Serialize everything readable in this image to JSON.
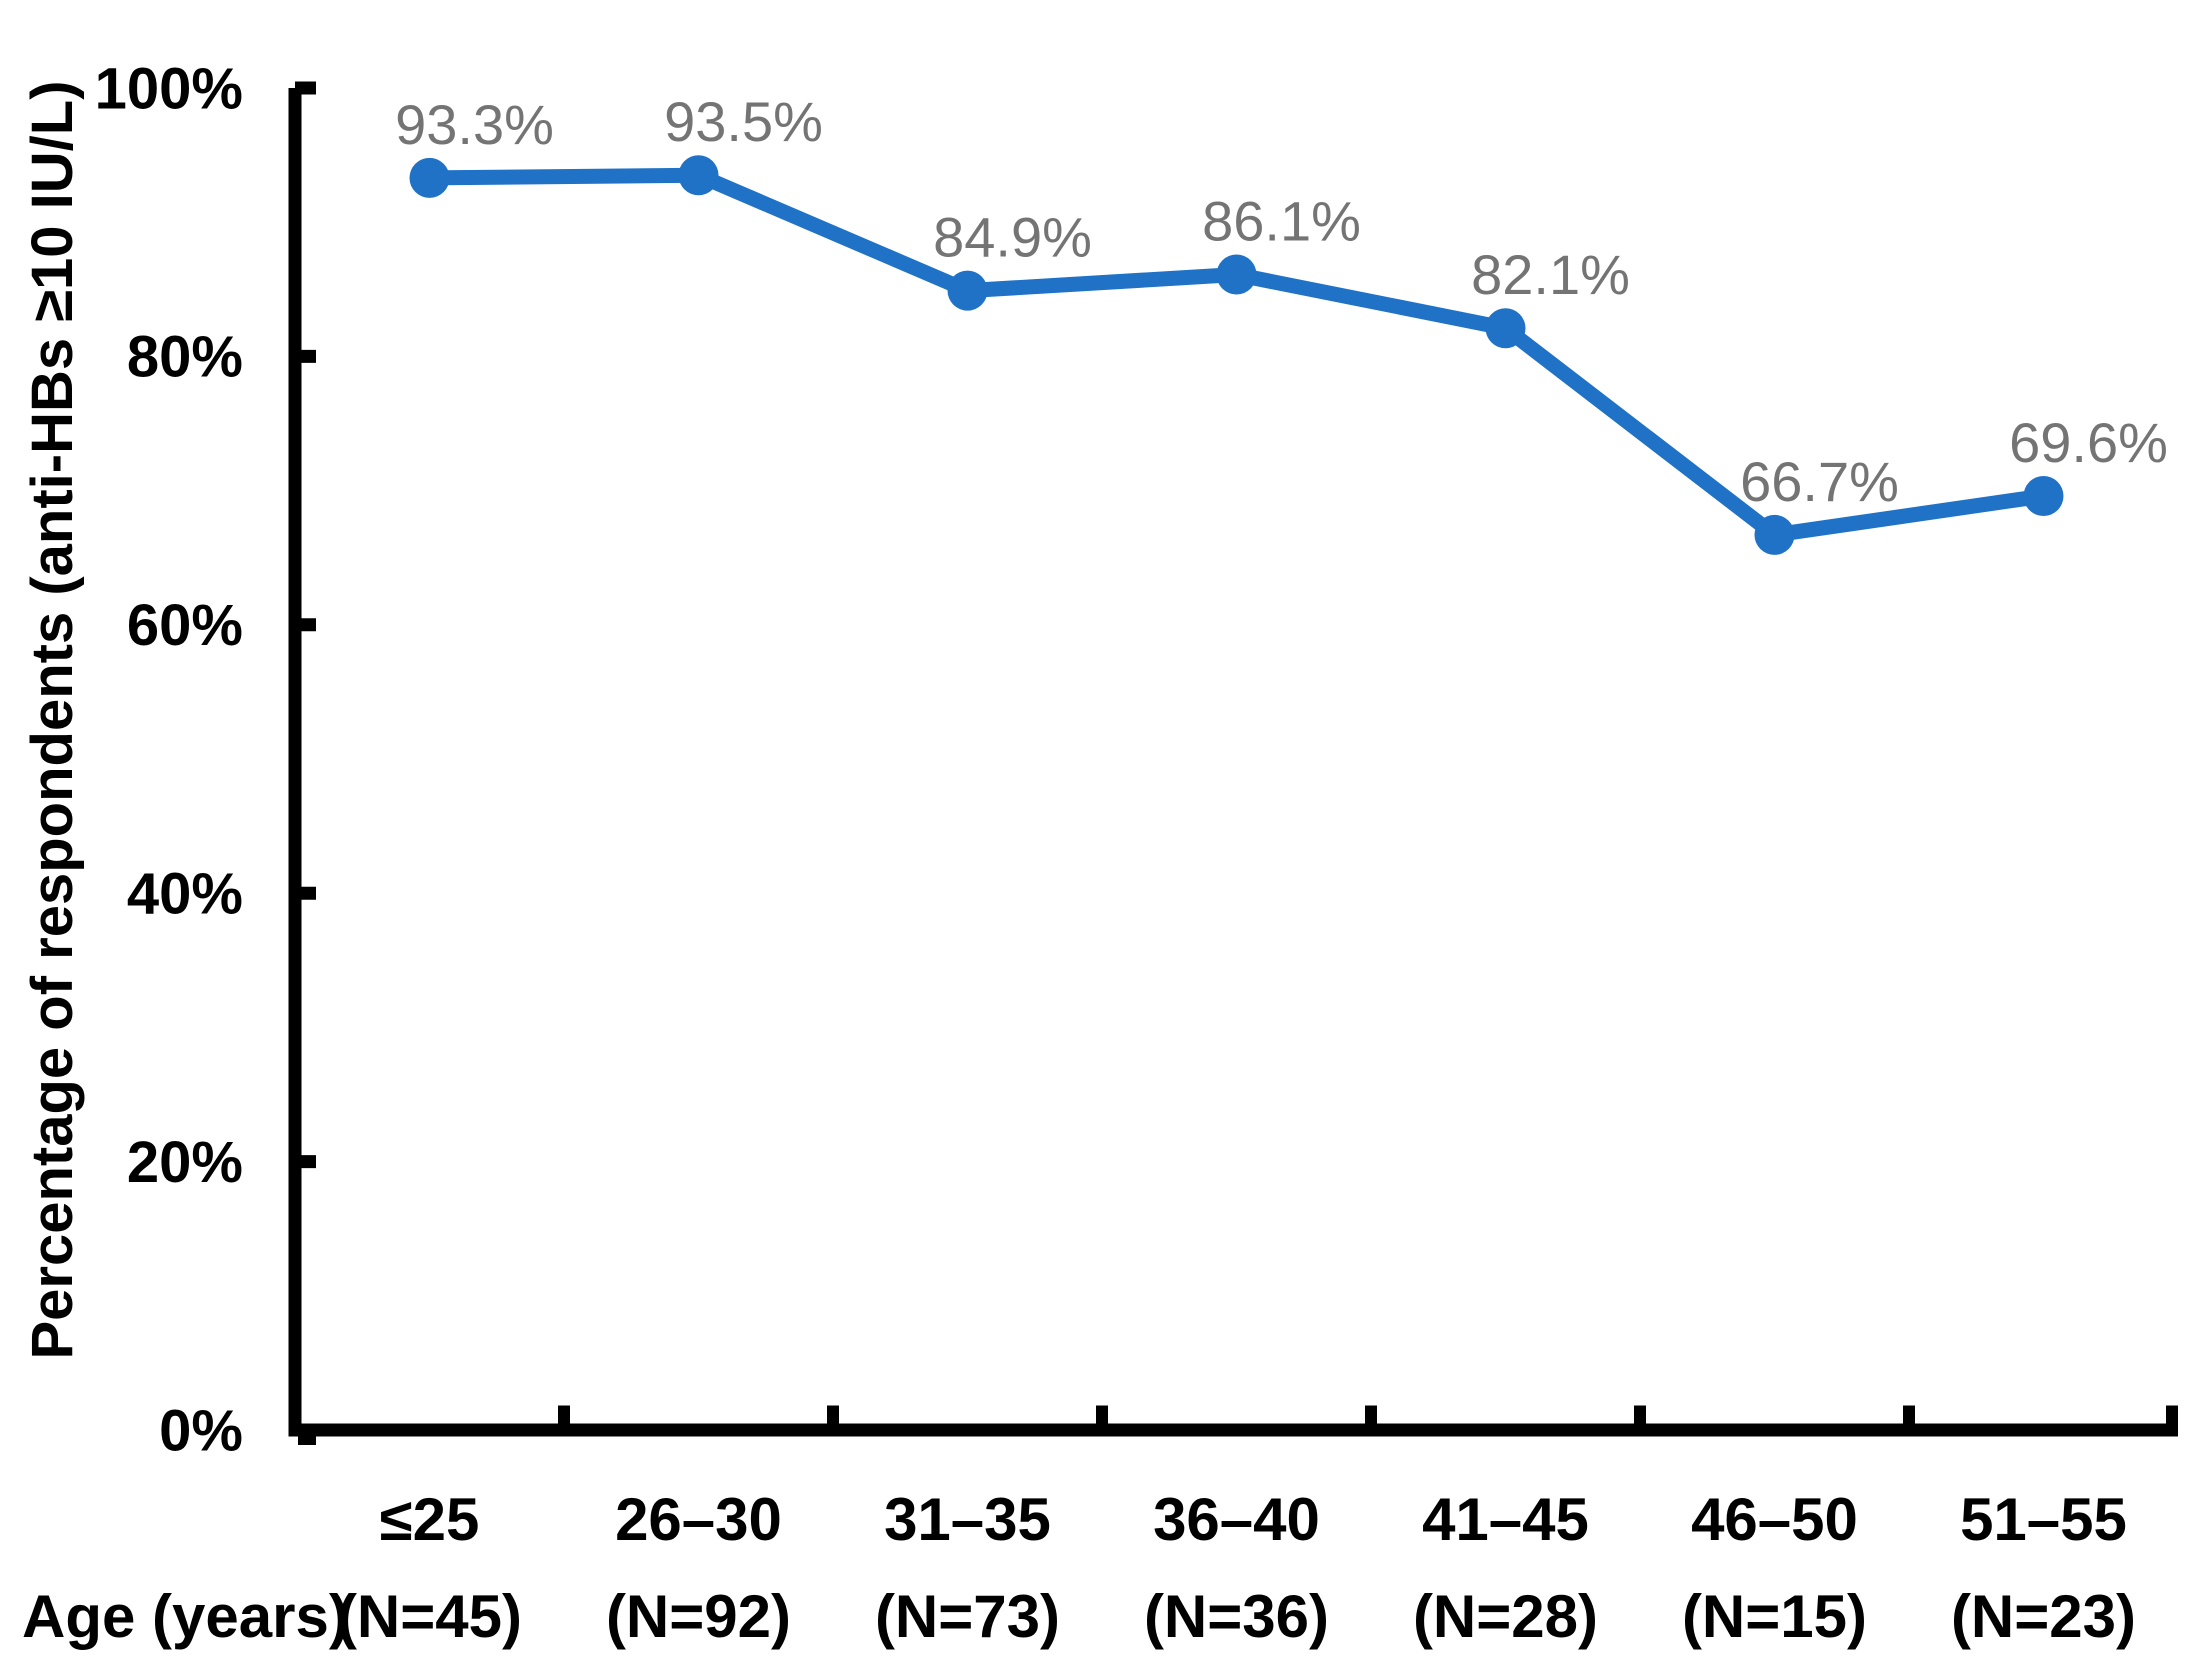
{
  "figure": {
    "background": "#ffffff"
  },
  "chart_data": {
    "type": "line",
    "title": "",
    "ylabel": "Percentage of respondents (anti-HBs ≥10 IU/L)",
    "xlabel": "Age (years)",
    "categories": [
      "≤25",
      "26–30",
      "31–35",
      "36–40",
      "41–45",
      "46–50",
      "51–55"
    ],
    "category_sublabels": [
      "(N=45)",
      "(N=92)",
      "(N=73)",
      "(N=36)",
      "(N=28)",
      "(N=15)",
      "(N=23)"
    ],
    "series": [
      {
        "name": "Percentage of respondents (anti-HBs ≥10 IU/L)",
        "values": [
          93.3,
          93.5,
          84.9,
          86.1,
          82.1,
          66.7,
          69.6
        ],
        "point_labels": [
          "93.3%",
          "93.5%",
          "84.9%",
          "86.1%",
          "82.1%",
          "66.7%",
          "69.6%"
        ],
        "color": "#1F72C6"
      }
    ],
    "y_ticks": [
      {
        "value": 0,
        "label": "0%"
      },
      {
        "value": 20,
        "label": "20%"
      },
      {
        "value": 40,
        "label": "40%"
      },
      {
        "value": 60,
        "label": "60%"
      },
      {
        "value": 80,
        "label": "80%"
      },
      {
        "value": 100,
        "label": "100%"
      }
    ],
    "ylim": [
      0,
      100
    ],
    "grid": "off",
    "legend": "none",
    "marker": "circle",
    "colors": {
      "line": "#1F72C6",
      "marker": "#1F72C6",
      "point_label": "#747474",
      "axis": "#000000",
      "tick_label": "#000000"
    }
  }
}
